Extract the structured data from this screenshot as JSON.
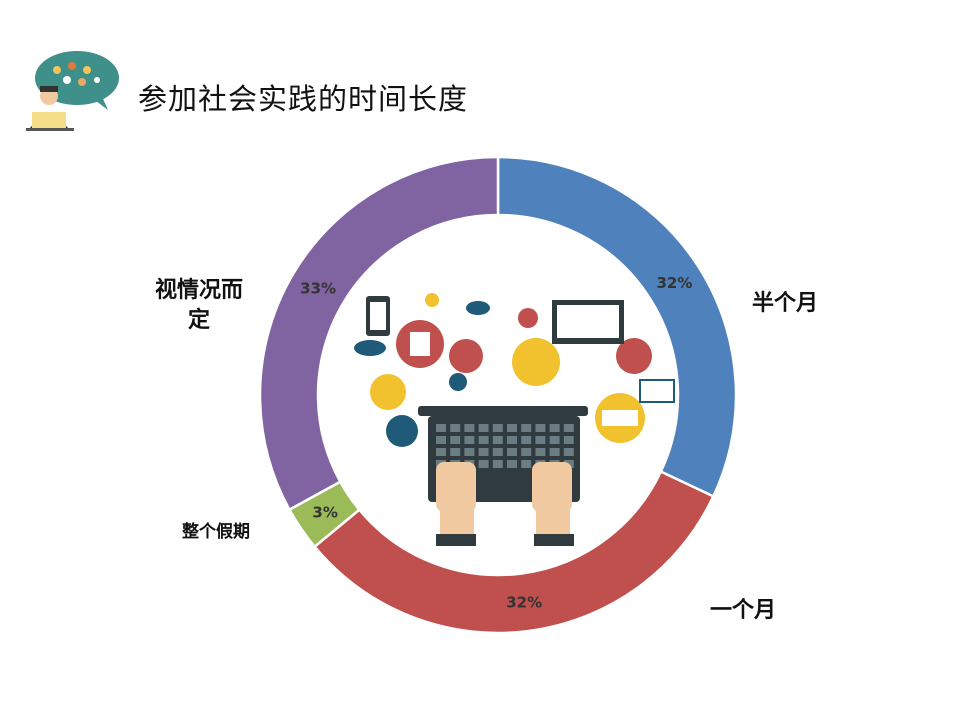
{
  "title": "参加社会实践的时间长度",
  "chart_data": {
    "type": "pie",
    "donut": true,
    "categories": [
      "半个月",
      "一个月",
      "整个假期",
      "视情况而定"
    ],
    "values": [
      32,
      32,
      3,
      33
    ],
    "data_labels": [
      "32%",
      "32%",
      "3%",
      "33%"
    ],
    "colors": [
      "#4F81BD",
      "#C0504D",
      "#9BBB59",
      "#8064A2"
    ],
    "start": "top",
    "direction": "clockwise"
  },
  "icons": [
    "presenter-icon",
    "laptop-hands-icon"
  ]
}
